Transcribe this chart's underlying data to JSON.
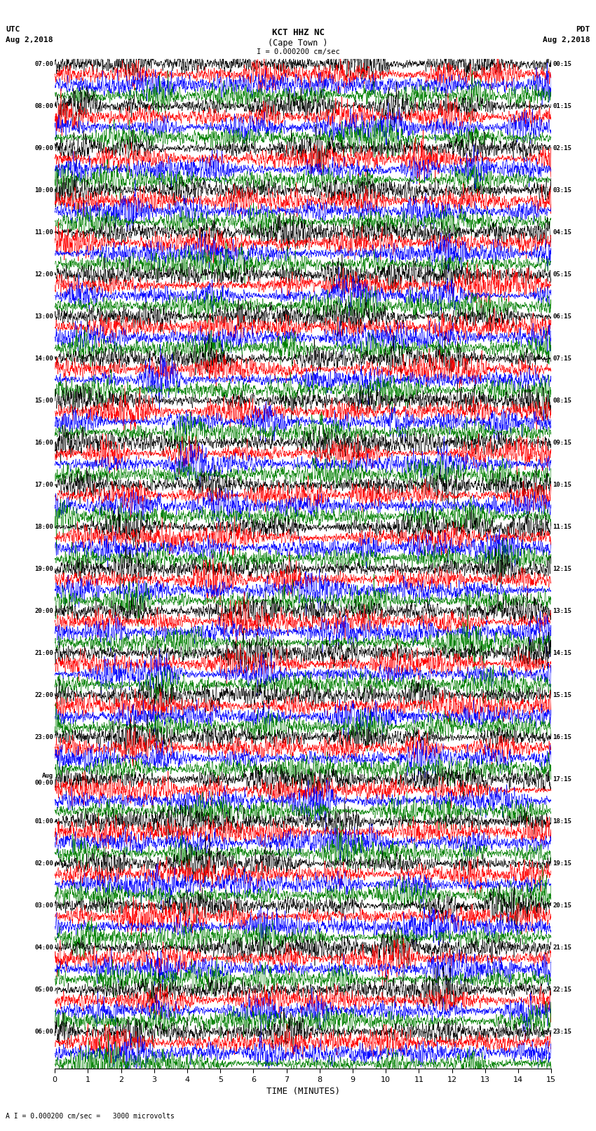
{
  "title_line1": "KCT HHZ NC",
  "title_line2": "(Cape Town )",
  "scale_label": "I = 0.000200 cm/sec",
  "bottom_label": "A I = 0.000200 cm/sec =   3000 microvolts",
  "utc_label": "UTC",
  "utc_date": "Aug 2,2018",
  "pdt_label": "PDT",
  "pdt_date": "Aug 2,2018",
  "xlabel": "TIME (MINUTES)",
  "left_times": [
    "07:00",
    "08:00",
    "09:00",
    "10:00",
    "11:00",
    "12:00",
    "13:00",
    "14:00",
    "15:00",
    "16:00",
    "17:00",
    "18:00",
    "19:00",
    "20:00",
    "21:00",
    "22:00",
    "23:00",
    "Aug\n00:00",
    "01:00",
    "02:00",
    "03:00",
    "04:00",
    "05:00",
    "06:00"
  ],
  "right_times": [
    "00:15",
    "01:15",
    "02:15",
    "03:15",
    "04:15",
    "05:15",
    "06:15",
    "07:15",
    "08:15",
    "09:15",
    "10:15",
    "11:15",
    "12:15",
    "13:15",
    "14:15",
    "15:15",
    "16:15",
    "17:15",
    "18:15",
    "19:15",
    "20:15",
    "21:15",
    "22:15",
    "23:15"
  ],
  "colors": [
    "black",
    "red",
    "blue",
    "green"
  ],
  "num_rows": 24,
  "traces_per_row": 4,
  "minutes": 15,
  "bg_color": "white",
  "seed": 42,
  "trace_amplitude": 0.42,
  "base_noise_std": 0.15,
  "lw": 0.4
}
